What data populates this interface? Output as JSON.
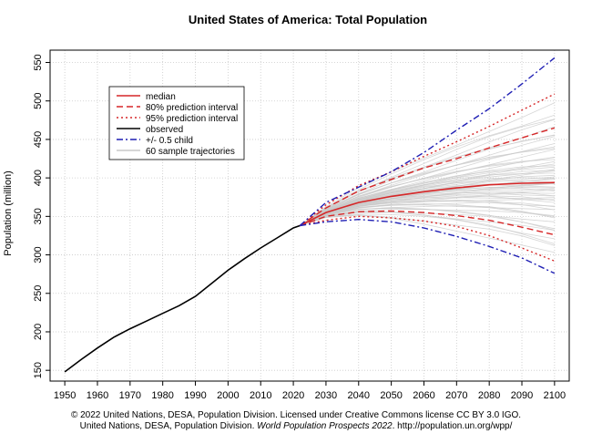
{
  "chart_data": {
    "type": "line",
    "title": "United States of America: Total Population",
    "ylabel": "Population (million)",
    "xlabel": "",
    "xlim": [
      1950,
      2100
    ],
    "ylim": [
      150,
      555
    ],
    "grid": true,
    "x_ticks": [
      1950,
      1960,
      1970,
      1980,
      1990,
      2000,
      2010,
      2020,
      2030,
      2040,
      2050,
      2060,
      2070,
      2080,
      2090,
      2100
    ],
    "y_ticks": [
      150,
      200,
      250,
      300,
      350,
      400,
      450,
      500,
      550
    ],
    "legend_position": "top-left",
    "legend": [
      {
        "label": "median",
        "color": "#d62728",
        "style": "solid"
      },
      {
        "label": "80% prediction interval",
        "color": "#d62728",
        "style": "dashed"
      },
      {
        "label": "95% prediction interval",
        "color": "#d62728",
        "style": "dotted"
      },
      {
        "label": "observed",
        "color": "#000000",
        "style": "solid"
      },
      {
        "label": "+/- 0.5 child",
        "color": "#1f1fb4",
        "style": "dashdot"
      },
      {
        "label": "60 sample trajectories",
        "color": "#c8c8c8",
        "style": "solid"
      }
    ],
    "series": [
      {
        "name": "observed",
        "color": "#000000",
        "style": "solid",
        "x": [
          1950,
          1955,
          1960,
          1965,
          1970,
          1975,
          1980,
          1985,
          1990,
          1995,
          2000,
          2005,
          2010,
          2015,
          2020,
          2022
        ],
        "y": [
          148,
          164,
          179,
          193,
          204,
          214,
          224,
          234,
          246,
          263,
          280,
          295,
          309,
          322,
          335,
          338
        ]
      },
      {
        "name": "median",
        "color": "#d62728",
        "style": "solid",
        "x": [
          2022,
          2030,
          2040,
          2050,
          2060,
          2070,
          2080,
          2090,
          2100
        ],
        "y": [
          338,
          355,
          368,
          376,
          382,
          387,
          391,
          393,
          394
        ]
      },
      {
        "name": "80% prediction interval",
        "color": "#d62728",
        "style": "dashed",
        "x": [
          2022,
          2030,
          2040,
          2050,
          2060,
          2070,
          2080,
          2090,
          2100
        ],
        "y": [
          338,
          361,
          383,
          398,
          413,
          425,
          439,
          452,
          465
        ]
      },
      {
        "name": "80% prediction interval",
        "color": "#d62728",
        "style": "dashed",
        "x": [
          2022,
          2030,
          2040,
          2050,
          2060,
          2070,
          2080,
          2090,
          2100
        ],
        "y": [
          338,
          350,
          356,
          357,
          355,
          351,
          345,
          336,
          326
        ]
      },
      {
        "name": "95% prediction interval",
        "color": "#d62728",
        "style": "dotted",
        "x": [
          2022,
          2030,
          2040,
          2050,
          2060,
          2070,
          2080,
          2090,
          2100
        ],
        "y": [
          338,
          365,
          390,
          408,
          428,
          447,
          467,
          488,
          509
        ]
      },
      {
        "name": "95% prediction interval",
        "color": "#d62728",
        "style": "dotted",
        "x": [
          2022,
          2030,
          2040,
          2050,
          2060,
          2070,
          2080,
          2090,
          2100
        ],
        "y": [
          338,
          345,
          350,
          348,
          344,
          337,
          325,
          309,
          292
        ]
      },
      {
        "name": "+/- 0.5 child",
        "color": "#1f1fb4",
        "style": "dashdot",
        "x": [
          2022,
          2030,
          2040,
          2050,
          2060,
          2070,
          2080,
          2090,
          2100
        ],
        "y": [
          338,
          368,
          388,
          408,
          433,
          462,
          490,
          522,
          556
        ]
      },
      {
        "name": "+/- 0.5 child",
        "color": "#1f1fb4",
        "style": "dashdot",
        "x": [
          2022,
          2030,
          2040,
          2050,
          2060,
          2070,
          2080,
          2090,
          2100
        ],
        "y": [
          338,
          343,
          346,
          343,
          335,
          324,
          311,
          296,
          276
        ]
      }
    ],
    "trajectories": {
      "name": "60 sample trajectories",
      "color": "#c8c8c8",
      "x": [
        2022,
        2030,
        2040,
        2050,
        2060,
        2070,
        2080,
        2090,
        2100
      ],
      "start": 338,
      "end_2100": [
        300,
        310,
        318,
        322,
        328,
        332,
        338,
        342,
        346,
        350,
        354,
        356,
        360,
        362,
        365,
        368,
        370,
        372,
        374,
        376,
        378,
        380,
        382,
        384,
        386,
        388,
        390,
        391,
        392,
        393,
        394,
        395,
        396,
        398,
        400,
        402,
        404,
        406,
        408,
        410,
        412,
        414,
        416,
        418,
        420,
        423,
        426,
        430,
        434,
        438,
        442,
        446,
        450,
        455,
        460,
        466,
        472,
        478,
        485,
        495
      ]
    }
  },
  "captions": {
    "line1": "© 2022 United Nations, DESA, Population Division. Licensed under Creative Commons license CC BY 3.0 IGO.",
    "line2_pre": "United Nations, DESA, Population Division. ",
    "line2_ital": "World Population Prospects 2022",
    "line2_post": ". http://population.un.org/wpp/"
  }
}
